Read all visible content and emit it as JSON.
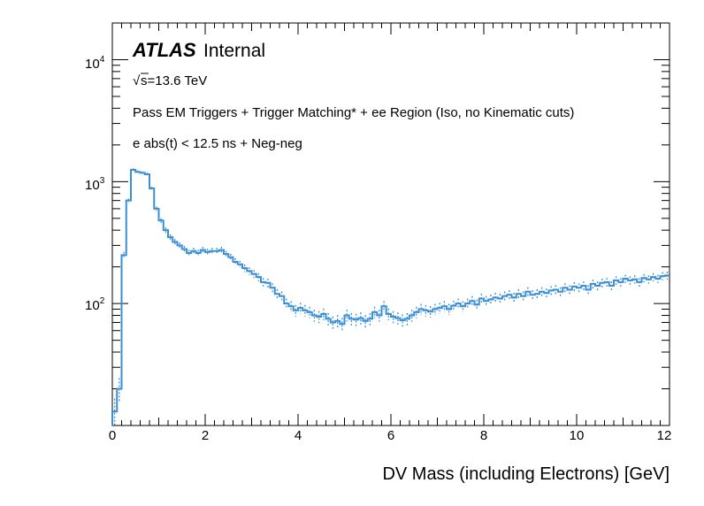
{
  "chart_data": {
    "type": "histogram",
    "title": "",
    "xlabel": "DV Mass (including Electrons) [GeV]",
    "ylabel": "",
    "xlim": [
      0,
      12
    ],
    "ylim": [
      10,
      20000
    ],
    "yscale": "log",
    "x_ticks": [
      "0",
      "2",
      "4",
      "6",
      "8",
      "10",
      "12"
    ],
    "y_ticks": [
      {
        "base": "10",
        "exp": "2",
        "value": 100
      },
      {
        "base": "10",
        "exp": "3",
        "value": 1000
      },
      {
        "base": "10",
        "exp": "4",
        "value": 10000
      }
    ],
    "annotations": {
      "experiment": "ATLAS",
      "status": "Internal",
      "energy": "s=13.6 TeV",
      "selection_1": "Pass EM Triggers + Trigger Matching* + ee Region (Iso, no Kinematic cuts)",
      "selection_2": "e abs(t) < 12.5 ns + Neg-neg"
    },
    "bin_width": 0.1,
    "series": [
      {
        "name": "DV mass",
        "color": "#3a8fd6",
        "bin_edges_start": 0,
        "values": [
          13,
          20,
          250,
          700,
          1250,
          1200,
          1180,
          1150,
          880,
          600,
          480,
          400,
          350,
          320,
          300,
          280,
          260,
          270,
          260,
          275,
          265,
          270,
          270,
          275,
          255,
          240,
          220,
          210,
          195,
          185,
          175,
          165,
          150,
          148,
          135,
          120,
          115,
          100,
          95,
          88,
          92,
          88,
          85,
          80,
          78,
          82,
          75,
          70,
          72,
          68,
          80,
          75,
          74,
          76,
          72,
          75,
          85,
          80,
          95,
          82,
          78,
          76,
          73,
          75,
          80,
          85,
          90,
          88,
          86,
          90,
          92,
          95,
          90,
          96,
          100,
          95,
          100,
          105,
          98,
          110,
          105,
          108,
          112,
          110,
          115,
          118,
          112,
          120,
          115,
          125,
          118,
          120,
          125,
          122,
          128,
          130,
          125,
          135,
          130,
          138,
          135,
          140,
          130,
          145,
          140,
          148,
          150,
          140,
          155,
          150,
          160,
          155,
          158,
          150,
          162,
          158,
          165,
          160,
          168,
          170
        ]
      }
    ]
  }
}
